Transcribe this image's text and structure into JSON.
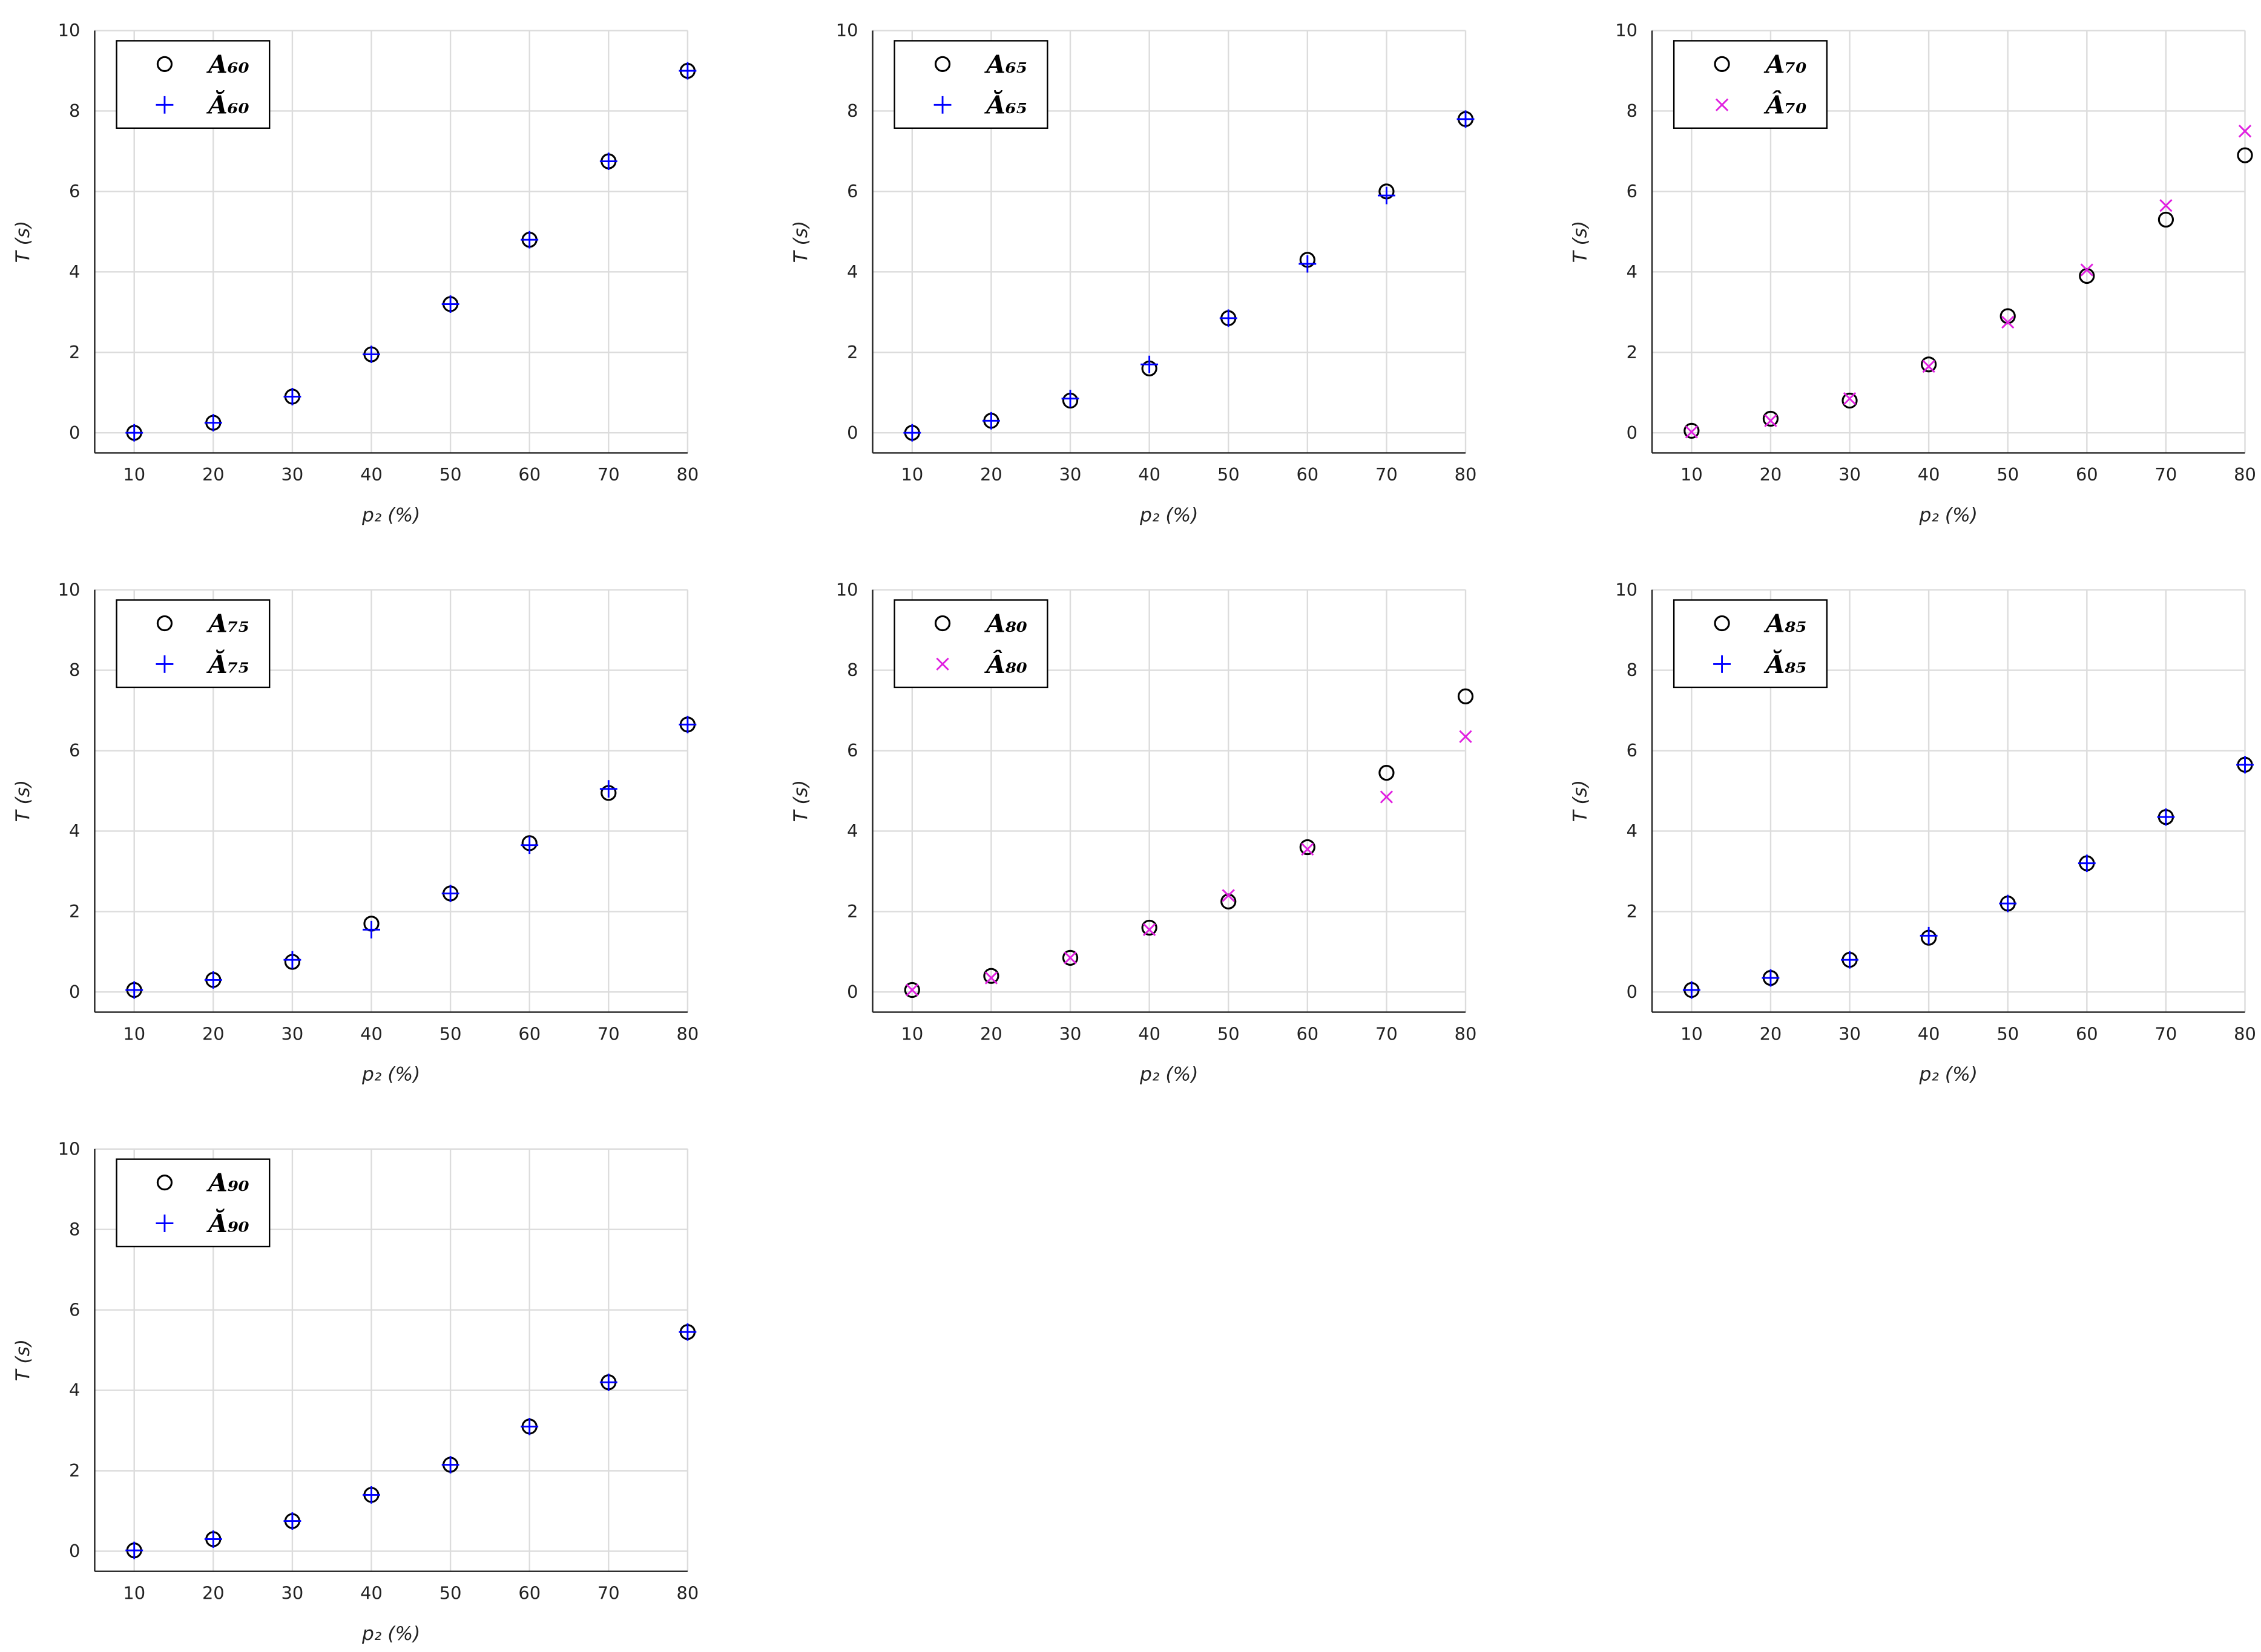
{
  "chart_data": [
    {
      "type": "scatter",
      "xlabel": "p₂ (%)",
      "ylabel": "T (s)",
      "xlim": [
        5,
        80
      ],
      "ylim": [
        -0.5,
        10
      ],
      "xticks": [
        10,
        20,
        30,
        40,
        50,
        60,
        70,
        80
      ],
      "yticks": [
        0,
        2,
        4,
        6,
        8,
        10
      ],
      "grid": true,
      "legend": "upper left",
      "x": [
        10,
        20,
        30,
        40,
        50,
        60,
        70,
        80
      ],
      "series": [
        {
          "name": "A₆₀",
          "color": "#000000",
          "marker": "o",
          "values": [
            0,
            0.25,
            0.9,
            1.95,
            3.2,
            4.8,
            6.75,
            9.0
          ]
        },
        {
          "name": "Ă₆₀",
          "color": "#0000ff",
          "marker": "+",
          "values": [
            0,
            0.25,
            0.9,
            1.95,
            3.2,
            4.8,
            6.75,
            9.0
          ]
        }
      ]
    },
    {
      "type": "scatter",
      "xlabel": "p₂ (%)",
      "ylabel": "T (s)",
      "xlim": [
        5,
        80
      ],
      "ylim": [
        -0.5,
        10
      ],
      "xticks": [
        10,
        20,
        30,
        40,
        50,
        60,
        70,
        80
      ],
      "yticks": [
        0,
        2,
        4,
        6,
        8,
        10
      ],
      "grid": true,
      "legend": "upper left",
      "x": [
        10,
        20,
        30,
        40,
        50,
        60,
        70,
        80
      ],
      "series": [
        {
          "name": "A₆₅",
          "color": "#000000",
          "marker": "o",
          "values": [
            0,
            0.3,
            0.8,
            1.6,
            2.85,
            4.3,
            6.0,
            7.8
          ]
        },
        {
          "name": "Ă₆₅",
          "color": "#0000ff",
          "marker": "+",
          "values": [
            0,
            0.3,
            0.85,
            1.7,
            2.85,
            4.2,
            5.9,
            7.8
          ]
        }
      ]
    },
    {
      "type": "scatter",
      "xlabel": "p₂ (%)",
      "ylabel": "T (s)",
      "xlim": [
        5,
        80
      ],
      "ylim": [
        -0.5,
        10
      ],
      "xticks": [
        10,
        20,
        30,
        40,
        50,
        60,
        70,
        80
      ],
      "yticks": [
        0,
        2,
        4,
        6,
        8,
        10
      ],
      "grid": true,
      "legend": "upper left",
      "x": [
        10,
        20,
        30,
        40,
        50,
        60,
        70,
        80
      ],
      "series": [
        {
          "name": "A₇₀",
          "color": "#000000",
          "marker": "o",
          "values": [
            0.05,
            0.35,
            0.8,
            1.7,
            2.9,
            3.9,
            5.3,
            6.9
          ]
        },
        {
          "name": "Â₇₀",
          "color": "#e020e0",
          "marker": "x",
          "values": [
            0.02,
            0.3,
            0.85,
            1.65,
            2.75,
            4.05,
            5.65,
            7.5
          ]
        }
      ]
    },
    {
      "type": "scatter",
      "xlabel": "p₂ (%)",
      "ylabel": "T (s)",
      "xlim": [
        5,
        80
      ],
      "ylim": [
        -0.5,
        10
      ],
      "xticks": [
        10,
        20,
        30,
        40,
        50,
        60,
        70,
        80
      ],
      "yticks": [
        0,
        2,
        4,
        6,
        8,
        10
      ],
      "grid": true,
      "legend": "upper left",
      "x": [
        10,
        20,
        30,
        40,
        50,
        60,
        70,
        80
      ],
      "series": [
        {
          "name": "A₇₅",
          "color": "#000000",
          "marker": "o",
          "values": [
            0.05,
            0.3,
            0.75,
            1.7,
            2.45,
            3.7,
            4.95,
            6.65
          ]
        },
        {
          "name": "Ă₇₅",
          "color": "#0000ff",
          "marker": "+",
          "values": [
            0.05,
            0.3,
            0.8,
            1.55,
            2.45,
            3.65,
            5.05,
            6.65
          ]
        }
      ]
    },
    {
      "type": "scatter",
      "xlabel": "p₂ (%)",
      "ylabel": "T (s)",
      "xlim": [
        5,
        80
      ],
      "ylim": [
        -0.5,
        10
      ],
      "xticks": [
        10,
        20,
        30,
        40,
        50,
        60,
        70,
        80
      ],
      "yticks": [
        0,
        2,
        4,
        6,
        8,
        10
      ],
      "grid": true,
      "legend": "upper left",
      "x": [
        10,
        20,
        30,
        40,
        50,
        60,
        70,
        80
      ],
      "series": [
        {
          "name": "A₈₀",
          "color": "#000000",
          "marker": "o",
          "values": [
            0.05,
            0.4,
            0.85,
            1.6,
            2.25,
            3.6,
            5.45,
            7.35
          ]
        },
        {
          "name": "Â₈₀",
          "color": "#e020e0",
          "marker": "x",
          "values": [
            0.05,
            0.35,
            0.85,
            1.55,
            2.4,
            3.55,
            4.85,
            6.35
          ]
        }
      ]
    },
    {
      "type": "scatter",
      "xlabel": "p₂ (%)",
      "ylabel": "T (s)",
      "xlim": [
        5,
        80
      ],
      "ylim": [
        -0.5,
        10
      ],
      "xticks": [
        10,
        20,
        30,
        40,
        50,
        60,
        70,
        80
      ],
      "yticks": [
        0,
        2,
        4,
        6,
        8,
        10
      ],
      "grid": true,
      "legend": "upper left",
      "x": [
        10,
        20,
        30,
        40,
        50,
        60,
        70,
        80
      ],
      "series": [
        {
          "name": "A₈₅",
          "color": "#000000",
          "marker": "o",
          "values": [
            0.05,
            0.35,
            0.8,
            1.35,
            2.2,
            3.2,
            4.35,
            5.65
          ]
        },
        {
          "name": "Ă₈₅",
          "color": "#0000ff",
          "marker": "+",
          "values": [
            0.05,
            0.35,
            0.8,
            1.4,
            2.2,
            3.2,
            4.35,
            5.65
          ]
        }
      ]
    },
    {
      "type": "scatter",
      "xlabel": "p₂ (%)",
      "ylabel": "T (s)",
      "xlim": [
        5,
        80
      ],
      "ylim": [
        -0.5,
        10
      ],
      "xticks": [
        10,
        20,
        30,
        40,
        50,
        60,
        70,
        80
      ],
      "yticks": [
        0,
        2,
        4,
        6,
        8,
        10
      ],
      "grid": true,
      "legend": "upper left",
      "x": [
        10,
        20,
        30,
        40,
        50,
        60,
        70,
        80
      ],
      "series": [
        {
          "name": "A₉₀",
          "color": "#000000",
          "marker": "o",
          "values": [
            0.02,
            0.3,
            0.75,
            1.4,
            2.15,
            3.1,
            4.2,
            5.45
          ]
        },
        {
          "name": "Ă₉₀",
          "color": "#0000ff",
          "marker": "+",
          "values": [
            0.02,
            0.3,
            0.75,
            1.4,
            2.15,
            3.1,
            4.2,
            5.45
          ]
        }
      ]
    }
  ]
}
